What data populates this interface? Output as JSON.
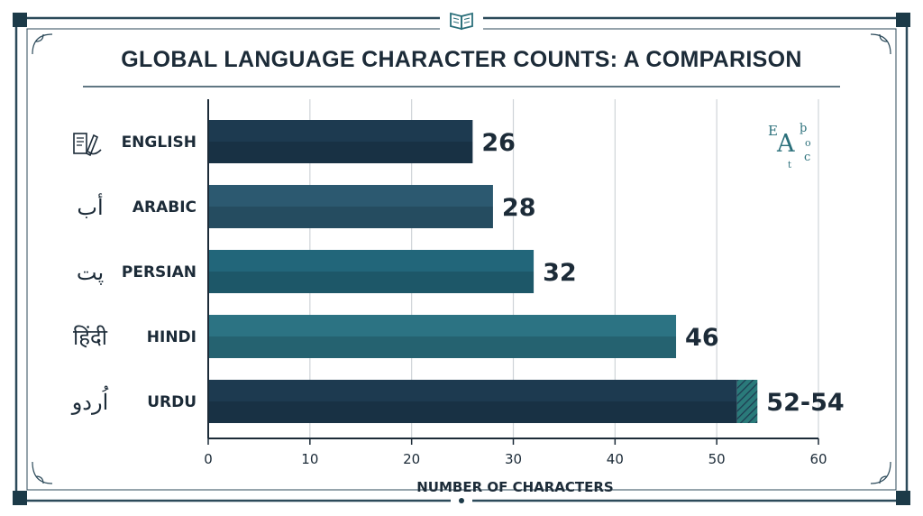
{
  "chart_data": {
    "type": "bar",
    "orientation": "horizontal",
    "title": "GLOBAL LANGUAGE CHARACTER COUNTS: A COMPARISON",
    "xlabel": "NUMBER OF CHARACTERS",
    "ylabel": "",
    "xlim": [
      0,
      60
    ],
    "xticks": [
      0,
      10,
      20,
      30,
      40,
      50,
      60
    ],
    "grid": true,
    "categories": [
      "ENGLISH",
      "ARABIC",
      "PERSIAN",
      "HINDI",
      "URDU"
    ],
    "values": [
      26,
      28,
      32,
      46,
      54
    ],
    "range_start": [
      null,
      null,
      null,
      null,
      52
    ],
    "value_labels": [
      "26",
      "28",
      "32",
      "46",
      "52-54"
    ],
    "script_samples": [
      "",
      "أب",
      "پت",
      "हिंदी",
      "اُردو"
    ],
    "colors": {
      "bars": [
        "#1d3a50",
        "#2c5970",
        "#22667a",
        "#2c7383",
        "#1d3a50"
      ],
      "range_hatch": "#2a7a7a",
      "text": "#1c2b38",
      "frame": "#2c4a5a",
      "grid": "#cfd4d8"
    },
    "icons": [
      "writing-hand-icon",
      "open-book-icon",
      "alphabet-letters-icon"
    ]
  }
}
